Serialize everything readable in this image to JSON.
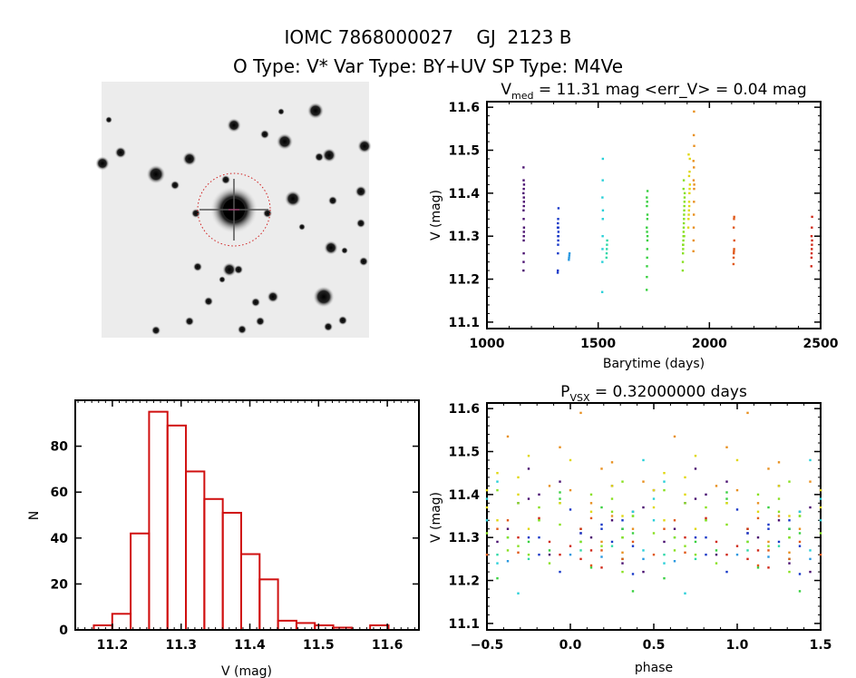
{
  "header": {
    "title": "IOMC 7868000027    GJ  2123 B",
    "subtitle": "O Type: V*  Var Type: BY+UV  SP Type: M4Ve"
  },
  "chart_data": [
    {
      "type": "image",
      "description_label": "",
      "panel": "sky-image"
    },
    {
      "type": "scatter",
      "panel": "light-curve",
      "title_main": "V",
      "title_sub": "med",
      "title_rest": " = 11.31 mag <err_V> = 0.04 mag",
      "xlabel": "Barytime (days)",
      "ylabel": "V (mag)",
      "xlim": [
        1000,
        2500
      ],
      "ylim": [
        11.613,
        11.085
      ],
      "xticks": [
        1000,
        1500,
        2000,
        2500
      ],
      "yticks": [
        11.1,
        11.2,
        11.3,
        11.4,
        11.5,
        11.6
      ],
      "grid": false,
      "groups": [
        {
          "color": "#4a1070",
          "points": [
            [
              1164.3,
              11.22
            ],
            [
              1164.9,
              11.24
            ],
            [
              1165.4,
              11.26
            ],
            [
              1165.8,
              11.3
            ],
            [
              1166.1,
              11.31
            ],
            [
              1166.6,
              11.32
            ],
            [
              1165.2,
              11.34
            ],
            [
              1164.6,
              11.36
            ],
            [
              1165.9,
              11.37
            ],
            [
              1166.3,
              11.38
            ],
            [
              1164.1,
              11.4
            ],
            [
              1165.6,
              11.41
            ],
            [
              1166.8,
              11.42
            ],
            [
              1165.1,
              11.43
            ],
            [
              1164.4,
              11.46
            ],
            [
              1166.0,
              11.39
            ],
            [
              1165.3,
              11.29
            ]
          ]
        },
        {
          "color": "#1838c8",
          "points": [
            [
              1318.2,
              11.215
            ],
            [
              1318.7,
              11.22
            ],
            [
              1319.3,
              11.26
            ],
            [
              1319.8,
              11.28
            ],
            [
              1320.4,
              11.29
            ],
            [
              1320.9,
              11.3
            ],
            [
              1321.3,
              11.31
            ],
            [
              1318.5,
              11.32
            ],
            [
              1319.1,
              11.33
            ],
            [
              1320.1,
              11.34
            ],
            [
              1321.6,
              11.365
            ],
            [
              1319.6,
              11.3
            ],
            [
              1320.7,
              11.32
            ]
          ]
        },
        {
          "color": "#2898e0",
          "points": [
            [
              1368.2,
              11.245
            ],
            [
              1369.1,
              11.25
            ],
            [
              1370.3,
              11.255
            ],
            [
              1371.2,
              11.26
            ]
          ]
        },
        {
          "color": "#28d0d8",
          "points": [
            [
              1518.3,
              11.17
            ],
            [
              1518.9,
              11.24
            ],
            [
              1519.5,
              11.27
            ],
            [
              1520.2,
              11.3
            ],
            [
              1520.8,
              11.34
            ],
            [
              1521.4,
              11.36
            ],
            [
              1519.2,
              11.39
            ],
            [
              1520.5,
              11.43
            ],
            [
              1521.1,
              11.48
            ]
          ]
        },
        {
          "color": "#30d8a8",
          "points": [
            [
              1537.2,
              11.25
            ],
            [
              1538.1,
              11.26
            ],
            [
              1538.9,
              11.27
            ],
            [
              1539.6,
              11.28
            ],
            [
              1540.5,
              11.29
            ]
          ]
        },
        {
          "color": "#38d040",
          "points": [
            [
              1718.2,
              11.175
            ],
            [
              1718.9,
              11.205
            ],
            [
              1719.4,
              11.23
            ],
            [
              1720.1,
              11.25
            ],
            [
              1720.6,
              11.27
            ],
            [
              1721.2,
              11.29
            ],
            [
              1721.7,
              11.3
            ],
            [
              1719.8,
              11.31
            ],
            [
              1718.5,
              11.32
            ],
            [
              1720.9,
              11.34
            ],
            [
              1721.4,
              11.35
            ],
            [
              1719.1,
              11.37
            ],
            [
              1720.3,
              11.38
            ],
            [
              1718.7,
              11.39
            ],
            [
              1721.9,
              11.405
            ]
          ]
        },
        {
          "color": "#88e020",
          "points": [
            [
              1880.1,
              11.22
            ],
            [
              1880.6,
              11.24
            ],
            [
              1881.2,
              11.26
            ],
            [
              1881.8,
              11.27
            ],
            [
              1882.3,
              11.28
            ],
            [
              1882.9,
              11.29
            ],
            [
              1883.4,
              11.3
            ],
            [
              1884.0,
              11.31
            ],
            [
              1884.5,
              11.32
            ],
            [
              1885.1,
              11.33
            ],
            [
              1885.7,
              11.34
            ],
            [
              1886.2,
              11.35
            ],
            [
              1886.8,
              11.36
            ],
            [
              1887.3,
              11.37
            ],
            [
              1887.9,
              11.38
            ],
            [
              1888.4,
              11.39
            ],
            [
              1889.0,
              11.4
            ],
            [
              1883.7,
              11.41
            ],
            [
              1884.9,
              11.43
            ],
            [
              1881.5,
              11.28
            ],
            [
              1886.5,
              11.3
            ]
          ]
        },
        {
          "color": "#e0d810",
          "points": [
            [
              1905.2,
              11.32
            ],
            [
              1906.1,
              11.34
            ],
            [
              1907.3,
              11.35
            ],
            [
              1908.2,
              11.36
            ],
            [
              1909.1,
              11.38
            ],
            [
              1910.3,
              11.4
            ],
            [
              1911.2,
              11.41
            ],
            [
              1912.4,
              11.42
            ],
            [
              1908.7,
              11.44
            ],
            [
              1910.9,
              11.45
            ],
            [
              1912.0,
              11.48
            ],
            [
              1906.8,
              11.49
            ],
            [
              1909.6,
              11.37
            ]
          ]
        },
        {
          "color": "#e89020",
          "points": [
            [
              1928.1,
              11.265
            ],
            [
              1928.7,
              11.29
            ],
            [
              1929.4,
              11.32
            ],
            [
              1930.0,
              11.35
            ],
            [
              1930.6,
              11.38
            ],
            [
              1931.2,
              11.41
            ],
            [
              1931.8,
              11.42
            ],
            [
              1929.1,
              11.43
            ],
            [
              1930.3,
              11.46
            ],
            [
              1928.4,
              11.475
            ],
            [
              1931.5,
              11.51
            ],
            [
              1929.8,
              11.535
            ],
            [
              1930.9,
              11.59
            ]
          ]
        },
        {
          "color": "#e05818",
          "points": [
            [
              2108.2,
              11.235
            ],
            [
              2108.9,
              11.25
            ],
            [
              2109.6,
              11.26
            ],
            [
              2110.3,
              11.265
            ],
            [
              2111.1,
              11.27
            ],
            [
              2111.8,
              11.29
            ],
            [
              2109.3,
              11.32
            ],
            [
              2110.6,
              11.34
            ],
            [
              2111.4,
              11.345
            ]
          ]
        },
        {
          "color": "#d02818",
          "points": [
            [
              2458.3,
              11.23
            ],
            [
              2458.9,
              11.25
            ],
            [
              2459.5,
              11.26
            ],
            [
              2460.2,
              11.27
            ],
            [
              2460.8,
              11.28
            ],
            [
              2461.4,
              11.29
            ],
            [
              2459.1,
              11.3
            ],
            [
              2460.5,
              11.32
            ],
            [
              2461.7,
              11.345
            ]
          ]
        }
      ]
    },
    {
      "type": "bar",
      "panel": "histogram",
      "xlabel": "V (mag)",
      "ylabel": "N",
      "xlim": [
        11.146,
        11.646
      ],
      "ylim": [
        0,
        100
      ],
      "xticks": [
        11.2,
        11.3,
        11.4,
        11.5,
        11.6
      ],
      "yticks": [
        0,
        20,
        40,
        60,
        80
      ],
      "bin_start": 11.173,
      "bin_width": 0.0268,
      "values": [
        2,
        7,
        42,
        95,
        89,
        69,
        57,
        51,
        33,
        22,
        4,
        3,
        2,
        1,
        0,
        2
      ],
      "color": "#d01010"
    },
    {
      "type": "scatter",
      "panel": "phase-curve",
      "title_main": "P",
      "title_sub": "VSX",
      "title_rest": " = 0.32000000 days",
      "period": 0.32,
      "xlabel": "phase",
      "ylabel": "V (mag)",
      "xlim": [
        -0.5,
        1.5
      ],
      "ylim": [
        11.613,
        11.085
      ],
      "xticks": [
        -0.5,
        0.0,
        0.5,
        1.0,
        1.5
      ],
      "xtick_labels": [
        "−0.5",
        "0.0",
        "0.5",
        "1.0",
        "1.5"
      ],
      "yticks": [
        11.1,
        11.2,
        11.3,
        11.4,
        11.5,
        11.6
      ]
    }
  ]
}
